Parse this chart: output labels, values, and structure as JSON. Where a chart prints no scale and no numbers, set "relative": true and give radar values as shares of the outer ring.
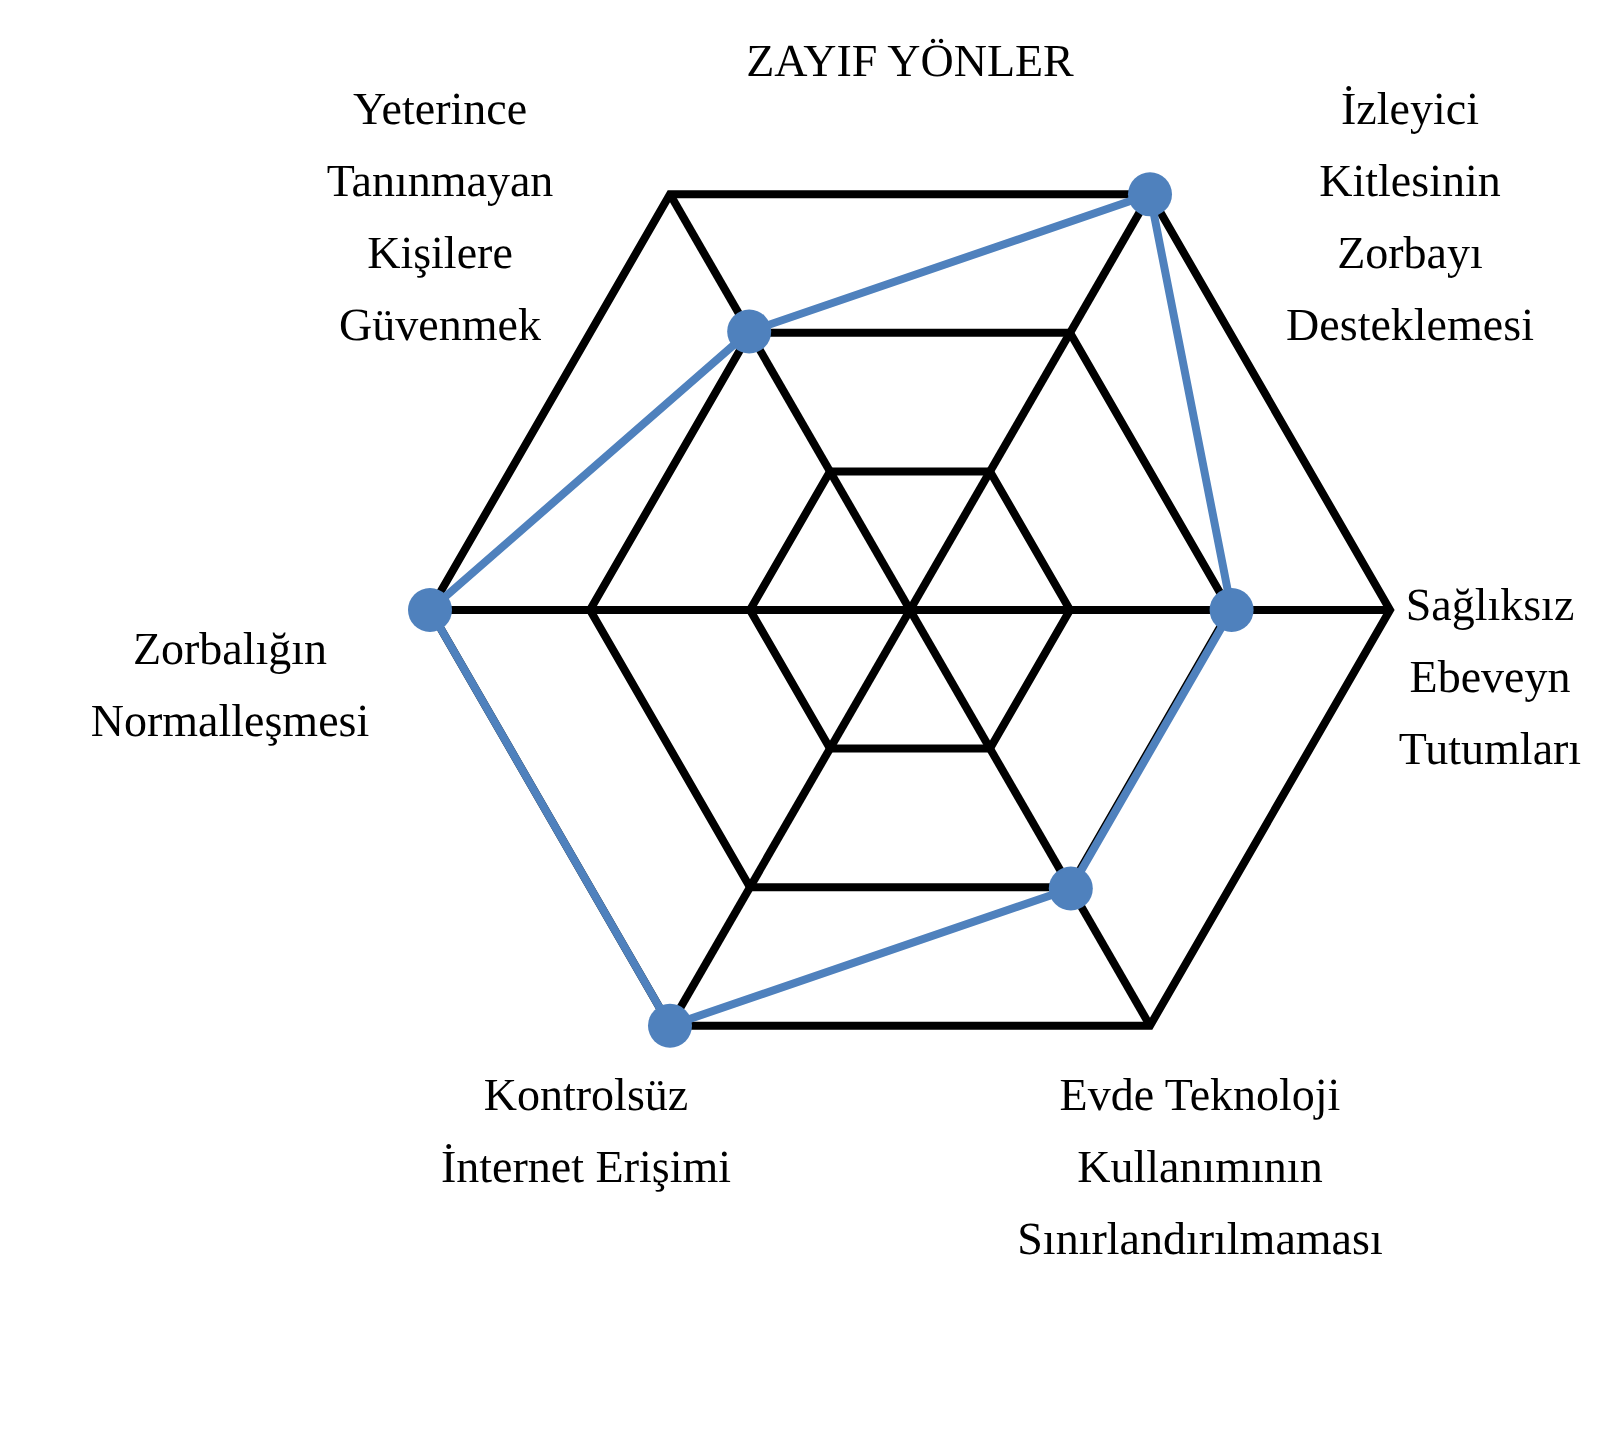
{
  "chart_data": {
    "type": "radar",
    "title": "ZAYIF YÖNLER",
    "relative": true,
    "categories": [
      "İzleyici\nKitlesinin\nZorbayı\nDesteklemesi",
      "Sağlıksız\nEbeveyn\nTutumları",
      "Evde Teknoloji\nKullanımının\nSınırlandırılmaması",
      "Kontrolsüz\nİnternet Erişimi",
      "Zorbalığın\nNormalleşmesi",
      "Yeterince\nTanınmayan\nKişilere\nGüvenmek"
    ],
    "series": [
      {
        "color": "#4f81bd",
        "values": [
          1,
          0.67,
          0.67,
          1,
          1,
          0.67
        ]
      }
    ],
    "grid": true,
    "legend": false,
    "marker": "circle"
  }
}
